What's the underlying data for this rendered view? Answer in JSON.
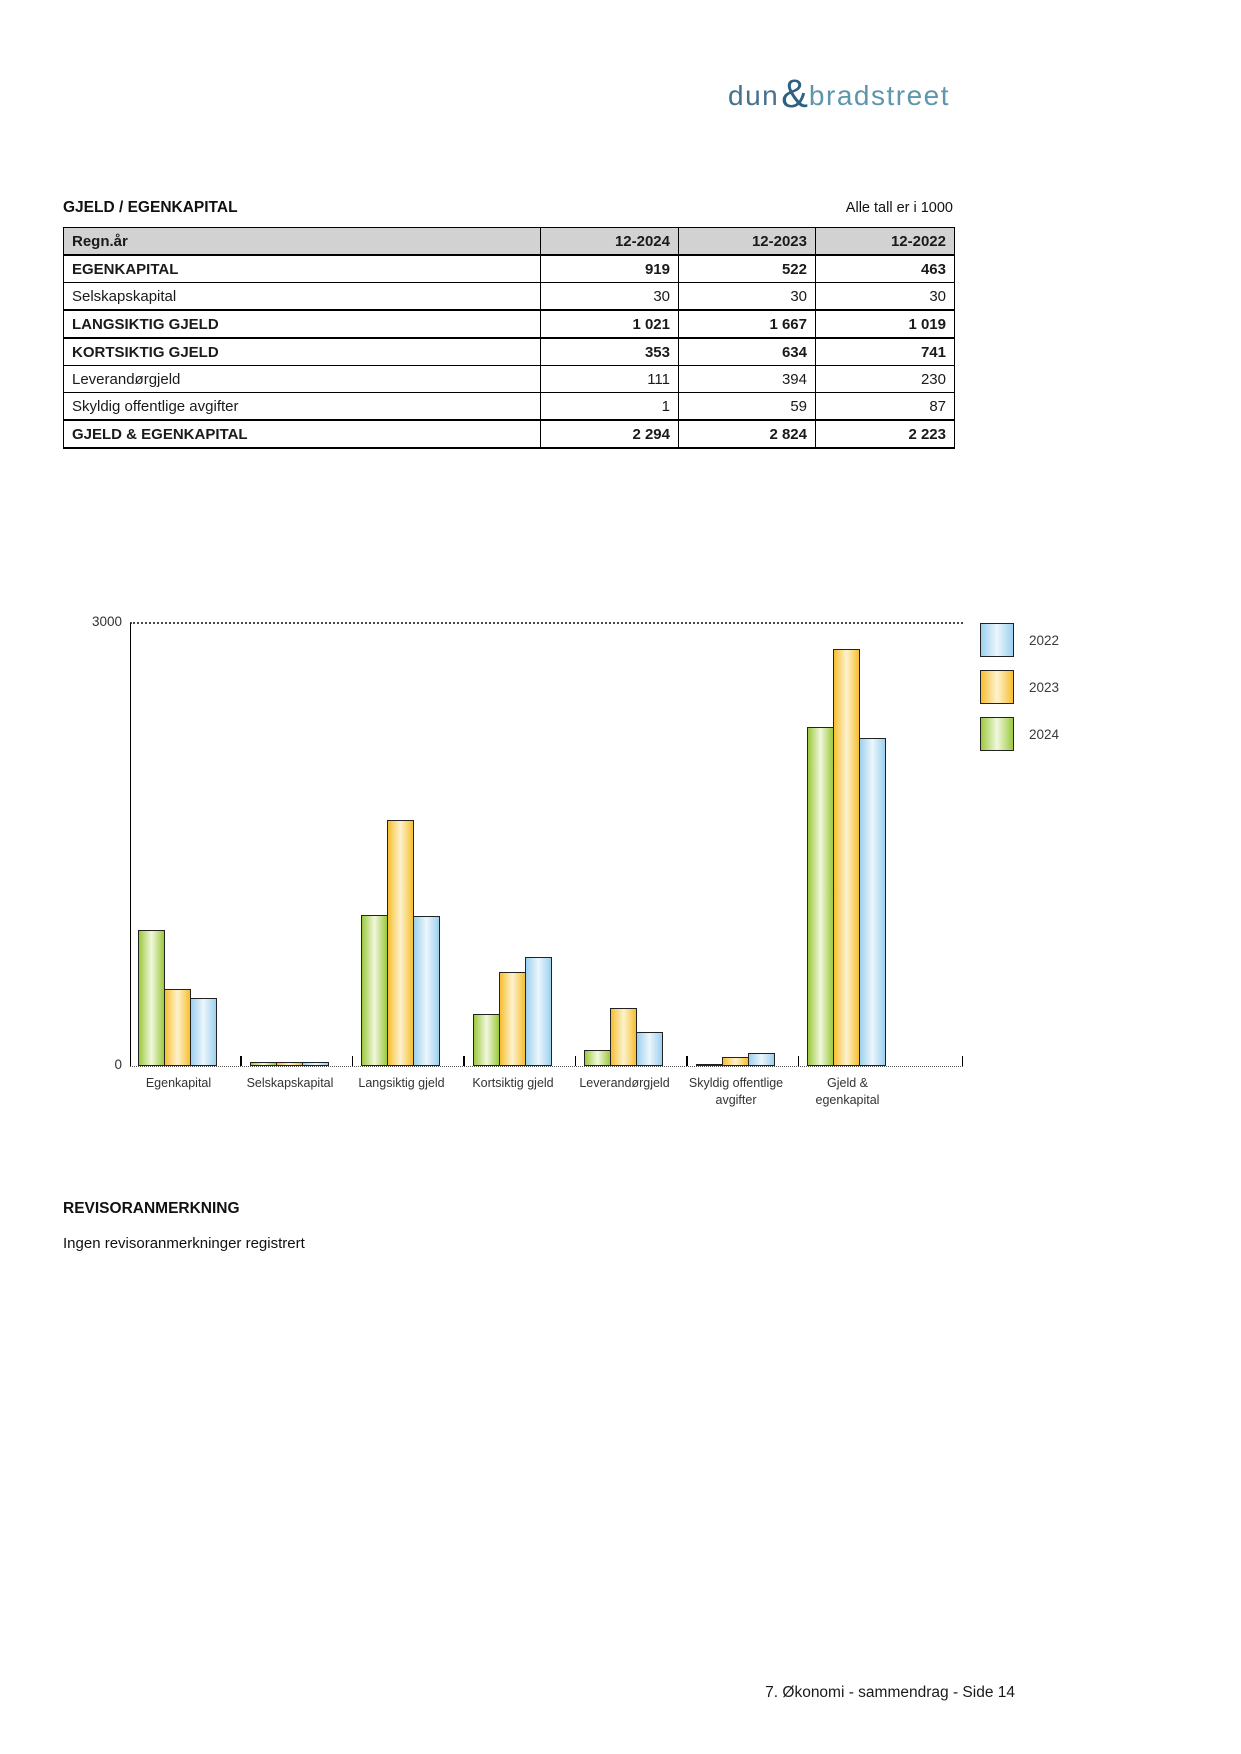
{
  "logo": {
    "word1": "dun",
    "amp": "&",
    "word2": "bradstreet",
    "color_word1": "#46718d",
    "color_amp": "#2d6183",
    "color_word2": "#5d96ad"
  },
  "section": {
    "title": "GJELD / EGENKAPITAL",
    "note": "Alle tall er i 1000"
  },
  "table": {
    "header": [
      "Regn.år",
      "12-2024",
      "12-2023",
      "12-2022"
    ],
    "rows": [
      {
        "label": "EGENKAPITAL",
        "bold": true,
        "values": [
          "919",
          "522",
          "463"
        ]
      },
      {
        "label": "Selskapskapital",
        "bold": false,
        "values": [
          "30",
          "30",
          "30"
        ]
      },
      {
        "label": "LANGSIKTIG GJELD",
        "bold": true,
        "values": [
          "1 021",
          "1 667",
          "1 019"
        ]
      },
      {
        "label": "KORTSIKTIG GJELD",
        "bold": true,
        "values": [
          "353",
          "634",
          "741"
        ]
      },
      {
        "label": "Leverandørgjeld",
        "bold": false,
        "values": [
          "111",
          "394",
          "230"
        ]
      },
      {
        "label": "Skyldig offentlige avgifter",
        "bold": false,
        "values": [
          "1",
          "59",
          "87"
        ]
      },
      {
        "label": "GJELD & EGENKAPITAL",
        "bold": true,
        "values": [
          "2 294",
          "2 824",
          "2 223"
        ]
      }
    ]
  },
  "chart_data": {
    "type": "bar",
    "title": "",
    "xlabel": "",
    "ylabel": "",
    "ylim": [
      0,
      3000
    ],
    "yticks": [
      0,
      3000
    ],
    "grid": "dotted line at y=3000, dotted baseline at y=0",
    "legend_position": "right",
    "categories": [
      "Egenkapital",
      "Selskapskapital",
      "Langsiktig gjeld",
      "Kortsiktig gjeld",
      "Leverandørgjeld",
      "Skyldig offentlige avgifter",
      "Gjeld & egenkapital"
    ],
    "categories_wrapped": [
      [
        "Egenkapital"
      ],
      [
        "Selskapskapital"
      ],
      [
        "Langsiktig gjeld"
      ],
      [
        "Kortsiktig gjeld"
      ],
      [
        "Leverandørgjeld"
      ],
      [
        "Skyldig offentlige",
        "avgifter"
      ],
      [
        "Gjeld &",
        "egenkapital"
      ]
    ],
    "series": [
      {
        "name": "2024",
        "color": "#9cc93e",
        "values": [
          919,
          30,
          1021,
          353,
          111,
          1,
          2294
        ]
      },
      {
        "name": "2023",
        "color": "#f7bf30",
        "values": [
          522,
          30,
          1667,
          634,
          394,
          59,
          2824
        ]
      },
      {
        "name": "2022",
        "color": "#9dd0ef",
        "values": [
          463,
          30,
          1019,
          741,
          230,
          87,
          2223
        ]
      }
    ],
    "legend": [
      "2022",
      "2023",
      "2024"
    ]
  },
  "revisor": {
    "heading": "REVISORANMERKNING",
    "text": "Ingen revisoranmerkninger registrert"
  },
  "footer": {
    "text": "7. Økonomi - sammendrag - Side 14"
  }
}
